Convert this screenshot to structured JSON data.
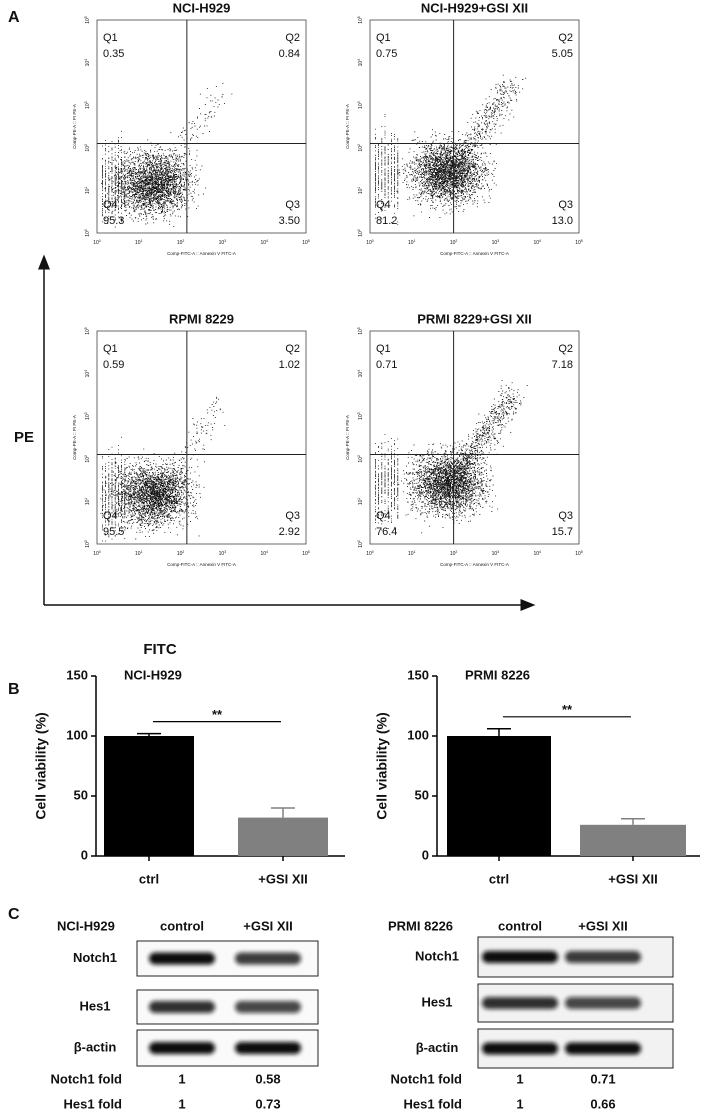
{
  "panel_labels": [
    "A",
    "B",
    "C"
  ],
  "flow": {
    "y_axis_label": "PE",
    "x_axis_label": "FITC",
    "y_axis_text": "Comp-PE-A :: PI PE-A",
    "x_axis_text": "Comp-FITC-A :: Annexin V FITC-A",
    "tick_base": "10",
    "tick_exponents": [
      "0",
      "1",
      "2",
      "3",
      "4",
      "5"
    ],
    "plots": [
      {
        "title": "NCI-H929",
        "quadrants": [
          {
            "name": "Q1",
            "value": "0.35"
          },
          {
            "name": "Q2",
            "value": "0.84"
          },
          {
            "name": "Q3",
            "value": "3.50"
          },
          {
            "name": "Q4",
            "value": "95.3"
          }
        ]
      },
      {
        "title": "NCI-H929+GSI XII",
        "quadrants": [
          {
            "name": "Q1",
            "value": "0.75"
          },
          {
            "name": "Q2",
            "value": "5.05"
          },
          {
            "name": "Q3",
            "value": "13.0"
          },
          {
            "name": "Q4",
            "value": "81.2"
          }
        ]
      },
      {
        "title": "RPMI 8229",
        "quadrants": [
          {
            "name": "Q1",
            "value": "0.59"
          },
          {
            "name": "Q2",
            "value": "1.02"
          },
          {
            "name": "Q3",
            "value": "2.92"
          },
          {
            "name": "Q4",
            "value": "95.5"
          }
        ]
      },
      {
        "title": "PRMI 8229+GSI XII",
        "quadrants": [
          {
            "name": "Q1",
            "value": "0.71"
          },
          {
            "name": "Q2",
            "value": "7.18"
          },
          {
            "name": "Q3",
            "value": "15.7"
          },
          {
            "name": "Q4",
            "value": "76.4"
          }
        ]
      }
    ]
  },
  "chart_data": [
    {
      "type": "bar",
      "title": "NCI-H929",
      "y_label": "Cell viability (%)",
      "categories": [
        "ctrl",
        "+GSI XII"
      ],
      "values": [
        100,
        32
      ],
      "errors": [
        2,
        8
      ],
      "colors": [
        "#000000",
        "#808080"
      ],
      "significance": "**",
      "ylim": [
        0,
        150
      ],
      "yticks": [
        0,
        50,
        100,
        150
      ]
    },
    {
      "type": "bar",
      "title": "PRMI 8226",
      "y_label": "Cell viability (%)",
      "categories": [
        "ctrl",
        "+GSI XII"
      ],
      "values": [
        100,
        26
      ],
      "errors": [
        6,
        5
      ],
      "colors": [
        "#000000",
        "#808080"
      ],
      "significance": "**",
      "ylim": [
        0,
        150
      ],
      "yticks": [
        0,
        50,
        100,
        150
      ]
    }
  ],
  "blots": [
    {
      "cell_line": "NCI-H929",
      "columns": [
        "control",
        "+GSI XII"
      ],
      "rows": [
        "Notch1",
        "Hes1",
        "β-actin"
      ],
      "folds": [
        {
          "label": "Notch1 fold",
          "values": [
            "1",
            "0.58"
          ]
        },
        {
          "label": "Hes1 fold",
          "values": [
            "1",
            "0.73"
          ]
        }
      ]
    },
    {
      "cell_line": "PRMI 8226",
      "columns": [
        "control",
        "+GSI XII"
      ],
      "rows": [
        "Notch1",
        "Hes1",
        "β-actin"
      ],
      "folds": [
        {
          "label": "Notch1 fold",
          "values": [
            "1",
            "0.71"
          ]
        },
        {
          "label": "Hes1 fold",
          "values": [
            "1",
            "0.66"
          ]
        }
      ]
    }
  ]
}
